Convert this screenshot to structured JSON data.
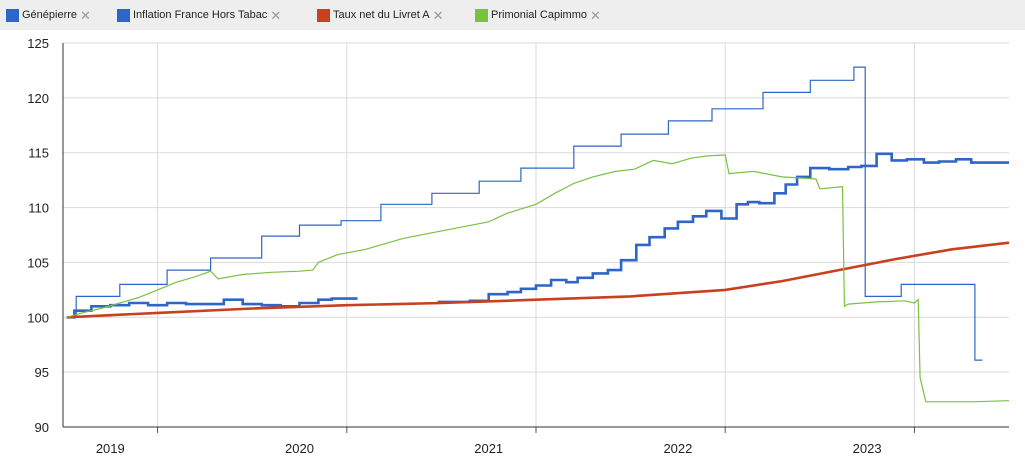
{
  "legend": {
    "items": [
      {
        "label": "Génépierre",
        "color": "#2f65c8"
      },
      {
        "label": "Inflation France Hors Tabac",
        "color": "#2f65c8"
      },
      {
        "label": "Taux net du Livret A",
        "color": "#c8411f"
      },
      {
        "label": "Primonial Capimmo",
        "color": "#7ac143"
      }
    ],
    "remove_glyph": "✕"
  },
  "chart_data": {
    "type": "line",
    "ylim": [
      90,
      125
    ],
    "xlim": [
      2018.5,
      2023.5
    ],
    "y_ticks": [
      90,
      95,
      100,
      105,
      110,
      115,
      120,
      125
    ],
    "x_categories": [
      "2019",
      "2020",
      "2021",
      "2022",
      "2023"
    ],
    "grid": true,
    "legend_placement": "top",
    "series": [
      {
        "name": "Génépierre",
        "color": "#2f65c8",
        "width": 1.2,
        "step": true,
        "points": [
          [
            2018.52,
            100.0
          ],
          [
            2018.57,
            101.9
          ],
          [
            2018.8,
            103.0
          ],
          [
            2019.05,
            104.3
          ],
          [
            2019.28,
            105.4
          ],
          [
            2019.55,
            107.4
          ],
          [
            2019.75,
            108.4
          ],
          [
            2019.97,
            108.8
          ],
          [
            2020.18,
            110.3
          ],
          [
            2020.45,
            111.3
          ],
          [
            2020.7,
            112.4
          ],
          [
            2020.92,
            113.6
          ],
          [
            2021.2,
            115.6
          ],
          [
            2021.45,
            116.7
          ],
          [
            2021.7,
            117.9
          ],
          [
            2021.93,
            119.0
          ],
          [
            2022.2,
            120.5
          ],
          [
            2022.45,
            121.6
          ],
          [
            2022.68,
            122.8
          ],
          [
            2022.74,
            101.9
          ],
          [
            2022.92,
            101.9
          ],
          [
            2022.93,
            103.0
          ],
          [
            2023.3,
            103.0
          ],
          [
            2023.32,
            96.1
          ],
          [
            2023.36,
            96.1
          ]
        ]
      },
      {
        "name": "Inflation France Hors Tabac",
        "color": "#2f65c8",
        "width": 2.6,
        "step": true,
        "points": [
          [
            2018.52,
            100.0
          ],
          [
            2018.56,
            100.6
          ],
          [
            2018.65,
            101.0
          ],
          [
            2018.75,
            101.1
          ],
          [
            2018.85,
            101.3
          ],
          [
            2018.95,
            101.1
          ],
          [
            2019.05,
            101.3
          ],
          [
            2019.15,
            101.2
          ],
          [
            2019.25,
            101.2
          ],
          [
            2019.35,
            101.6
          ],
          [
            2019.45,
            101.2
          ],
          [
            2019.55,
            101.1
          ],
          [
            2019.65,
            101.0
          ],
          [
            2019.75,
            101.3
          ],
          [
            2019.85,
            101.6
          ],
          [
            2019.92,
            101.7
          ],
          [
            2020.05,
            101.6
          ],
          [
            2020.12,
            null
          ],
          [
            2020.48,
            101.4
          ],
          [
            2020.55,
            101.4
          ],
          [
            2020.65,
            101.5
          ],
          [
            2020.75,
            102.1
          ],
          [
            2020.85,
            102.3
          ],
          [
            2020.92,
            102.6
          ],
          [
            2021.0,
            102.9
          ],
          [
            2021.08,
            103.4
          ],
          [
            2021.16,
            103.2
          ],
          [
            2021.22,
            103.6
          ],
          [
            2021.3,
            104.0
          ],
          [
            2021.38,
            104.3
          ],
          [
            2021.45,
            105.2
          ],
          [
            2021.53,
            106.6
          ],
          [
            2021.6,
            107.3
          ],
          [
            2021.68,
            108.1
          ],
          [
            2021.75,
            108.7
          ],
          [
            2021.83,
            109.2
          ],
          [
            2021.9,
            109.7
          ],
          [
            2021.98,
            109.0
          ],
          [
            2022.06,
            110.3
          ],
          [
            2022.12,
            110.5
          ],
          [
            2022.18,
            110.4
          ],
          [
            2022.26,
            111.3
          ],
          [
            2022.32,
            112.1
          ],
          [
            2022.38,
            112.8
          ],
          [
            2022.45,
            113.6
          ],
          [
            2022.55,
            113.5
          ],
          [
            2022.65,
            113.7
          ],
          [
            2022.72,
            113.8
          ],
          [
            2022.8,
            114.9
          ],
          [
            2022.88,
            114.3
          ],
          [
            2022.96,
            114.4
          ],
          [
            2023.05,
            114.1
          ],
          [
            2023.13,
            114.2
          ],
          [
            2023.22,
            114.4
          ],
          [
            2023.3,
            114.1
          ],
          [
            2023.5,
            114.1
          ]
        ]
      },
      {
        "name": "Taux net du Livret A",
        "color": "#c8411f",
        "width": 2.6,
        "step": false,
        "points": [
          [
            2018.52,
            100.0
          ],
          [
            2019.0,
            100.4
          ],
          [
            2019.5,
            100.8
          ],
          [
            2020.0,
            101.1
          ],
          [
            2020.5,
            101.3
          ],
          [
            2021.0,
            101.6
          ],
          [
            2021.5,
            101.9
          ],
          [
            2022.0,
            102.5
          ],
          [
            2022.3,
            103.3
          ],
          [
            2022.6,
            104.3
          ],
          [
            2022.9,
            105.3
          ],
          [
            2023.2,
            106.2
          ],
          [
            2023.5,
            106.8
          ]
        ]
      },
      {
        "name": "Primonial Capimmo",
        "color": "#7ac143",
        "width": 1.2,
        "step": false,
        "points": [
          [
            2018.52,
            100.0
          ],
          [
            2018.6,
            100.4
          ],
          [
            2018.7,
            100.8
          ],
          [
            2018.8,
            101.3
          ],
          [
            2018.9,
            101.8
          ],
          [
            2019.0,
            102.5
          ],
          [
            2019.1,
            103.2
          ],
          [
            2019.2,
            103.7
          ],
          [
            2019.28,
            104.2
          ],
          [
            2019.32,
            103.5
          ],
          [
            2019.45,
            103.9
          ],
          [
            2019.6,
            104.1
          ],
          [
            2019.75,
            104.2
          ],
          [
            2019.82,
            104.3
          ],
          [
            2019.85,
            105.0
          ],
          [
            2019.95,
            105.7
          ],
          [
            2020.1,
            106.2
          ],
          [
            2020.2,
            106.7
          ],
          [
            2020.3,
            107.2
          ],
          [
            2020.45,
            107.7
          ],
          [
            2020.6,
            108.2
          ],
          [
            2020.75,
            108.7
          ],
          [
            2020.85,
            109.5
          ],
          [
            2021.0,
            110.3
          ],
          [
            2021.1,
            111.3
          ],
          [
            2021.2,
            112.2
          ],
          [
            2021.3,
            112.8
          ],
          [
            2021.42,
            113.3
          ],
          [
            2021.52,
            113.5
          ],
          [
            2021.62,
            114.3
          ],
          [
            2021.72,
            114.0
          ],
          [
            2021.82,
            114.5
          ],
          [
            2021.9,
            114.7
          ],
          [
            2022.0,
            114.8
          ],
          [
            2022.02,
            113.1
          ],
          [
            2022.15,
            113.3
          ],
          [
            2022.3,
            112.8
          ],
          [
            2022.48,
            112.6
          ],
          [
            2022.5,
            111.7
          ],
          [
            2022.62,
            111.9
          ],
          [
            2022.63,
            101.0
          ],
          [
            2022.65,
            101.2
          ],
          [
            2022.8,
            101.4
          ],
          [
            2022.95,
            101.5
          ],
          [
            2023.0,
            101.3
          ],
          [
            2023.02,
            101.6
          ],
          [
            2023.03,
            94.5
          ],
          [
            2023.06,
            92.3
          ],
          [
            2023.3,
            92.3
          ],
          [
            2023.5,
            92.4
          ]
        ]
      }
    ]
  }
}
